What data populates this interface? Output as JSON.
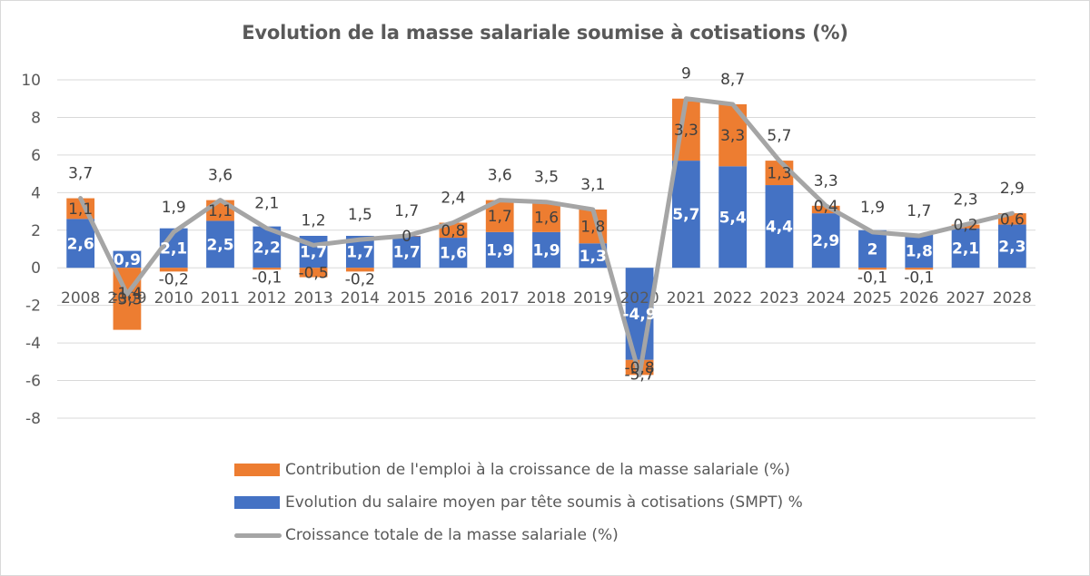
{
  "chart_data": {
    "type": "bar",
    "subtype": "stacked bar with line",
    "title": "Evolution de la masse salariale soumise à cotisations (%)",
    "xlabel": "",
    "ylabel": "",
    "ylim": [
      -8,
      10
    ],
    "yticks": [
      10,
      8,
      6,
      4,
      2,
      0,
      -2,
      -4,
      -6,
      -8
    ],
    "grid": true,
    "legend_position": "bottom",
    "categories": [
      "2008",
      "2009",
      "2010",
      "2011",
      "2012",
      "2013",
      "2014",
      "2015",
      "2016",
      "2017",
      "2018",
      "2019",
      "2020",
      "2021",
      "2022",
      "2023",
      "2024",
      "2025",
      "2026",
      "2027",
      "2028"
    ],
    "series": [
      {
        "name": "Contribution de l'emploi à la croissance de la masse salariale (%)",
        "kind": "bar",
        "color": "#ed7d31",
        "values": [
          1.1,
          -3.3,
          -0.2,
          1.1,
          -0.1,
          -0.5,
          -0.2,
          0,
          0.8,
          1.7,
          1.6,
          1.8,
          -0.8,
          3.3,
          3.3,
          1.3,
          0.4,
          -0.1,
          -0.1,
          0.2,
          0.6
        ],
        "labels": [
          "1,1",
          "-3,3",
          "-0,2",
          "1,1",
          "-0,1",
          "-0,5",
          "-0,2",
          "0",
          "0,8",
          "1,7",
          "1,6",
          "1,8",
          "-0,8",
          "3,3",
          "3,3",
          "1,3",
          "0,4",
          "-0,1",
          "-0,1",
          "0,2",
          "0,6"
        ]
      },
      {
        "name": "Evolution du salaire moyen par tête soumis à cotisations (SMPT) %",
        "kind": "bar",
        "color": "#4472c4",
        "values": [
          2.6,
          0.9,
          2.1,
          2.5,
          2.2,
          1.7,
          1.7,
          1.7,
          1.6,
          1.9,
          1.9,
          1.3,
          -4.9,
          5.7,
          5.4,
          4.4,
          2.9,
          2,
          1.8,
          2.1,
          2.3
        ],
        "labels": [
          "2,6",
          "0,9",
          "2,1",
          "2,5",
          "2,2",
          "1,7",
          "1,7",
          "1,7",
          "1,6",
          "1,9",
          "1,9",
          "1,3",
          "-4,9",
          "5,7",
          "5,4",
          "4,4",
          "2,9",
          "2",
          "1,8",
          "2,1",
          "2,3"
        ]
      },
      {
        "name": "Croissance totale de la masse salariale (%)",
        "kind": "line",
        "color": "#a5a5a5",
        "values": [
          3.7,
          -1.4,
          1.9,
          3.6,
          2.1,
          1.2,
          1.5,
          1.7,
          2.4,
          3.6,
          3.5,
          3.1,
          -5.7,
          9,
          8.7,
          5.7,
          3.3,
          1.9,
          1.7,
          2.3,
          2.9
        ],
        "labels": [
          "3,7",
          "-1,4",
          "1,9",
          "3,6",
          "2,1",
          "1,2",
          "1,5",
          "1,7",
          "2,4",
          "3,6",
          "3,5",
          "3,1",
          "-5,7",
          "9",
          "8,7",
          "5,7",
          "3,3",
          "1,9",
          "1,7",
          "2,3",
          "2,9"
        ]
      }
    ]
  }
}
